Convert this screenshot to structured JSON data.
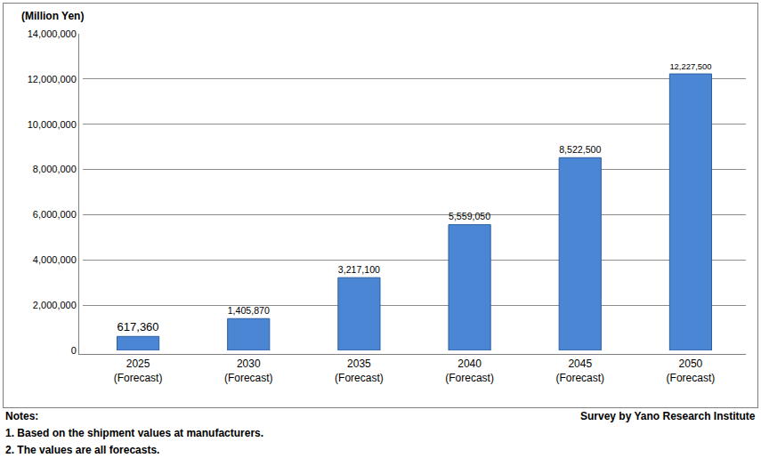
{
  "chart_data": {
    "type": "bar",
    "y_label": "(Million Yen)",
    "categories": [
      "2025\n(Forecast)",
      "2030\n(Forecast)",
      "2035\n(Forecast)",
      "2040\n(Forecast)",
      "2045\n(Forecast)",
      "2050\n(Forecast)"
    ],
    "values": [
      617360,
      1405870,
      3217100,
      5559050,
      8522500,
      12227500
    ],
    "value_labels": [
      "617,360",
      "1,405,870",
      "3,217,100",
      "5,559,050",
      "8,522,500",
      "12,227,500"
    ],
    "data_labels": true,
    "color": "#4a86d4",
    "ylim": [
      0,
      14000000
    ],
    "yticks": [
      0,
      {
        "value": 2000000,
        "label": "2,000,000"
      },
      {
        "value": 4000000,
        "label": "4,000,000"
      },
      {
        "value": 6000000,
        "label": "6,000,000"
      },
      {
        "value": 8000000,
        "label": "8,000,000"
      },
      {
        "value": 10000000,
        "label": "10,000,000"
      },
      {
        "value": 12000000,
        "label": "12,000,000"
      },
      {
        "value": 14000000,
        "label": "14,000,000"
      }
    ],
    "grid": true,
    "notes": [
      "Notes:",
      "1. Based on the shipment values at manufacturers.",
      "2. The values are all forecasts."
    ],
    "source": "Survey by Yano Research Institute"
  }
}
